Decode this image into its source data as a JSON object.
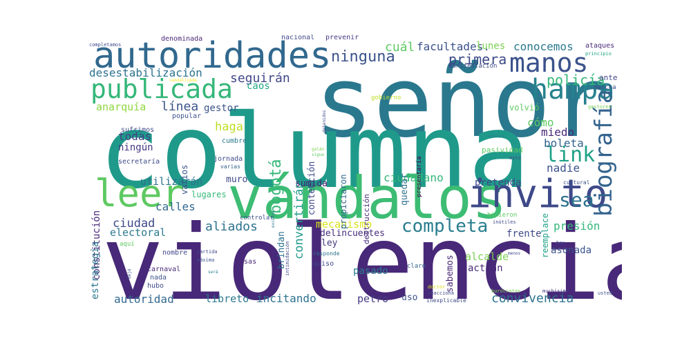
{
  "words": [
    {
      "text": "señor",
      "color": "#2a788e"
    },
    {
      "text": "columna",
      "color": "#1f9a8a"
    },
    {
      "text": "violencia",
      "color": "#482878"
    },
    {
      "text": "vándalos",
      "color": "#3dbc74"
    },
    {
      "text": "autoridades",
      "color": "#31688e"
    },
    {
      "text": "publicada",
      "color": "#35b779"
    },
    {
      "text": "leer",
      "color": "#5ec962"
    },
    {
      "text": "invito",
      "color": "#3e4989"
    },
    {
      "text": "hampa",
      "color": "#26828e"
    },
    {
      "text": "manos",
      "color": "#3b528b"
    },
    {
      "text": "completa",
      "color": "#287d8e"
    },
    {
      "text": "biografía",
      "color": "#33638d"
    },
    {
      "text": "link",
      "color": "#1fa188"
    },
    {
      "text": "ninguna",
      "color": "#3b528b"
    },
    {
      "text": "sea",
      "color": "#2c728e"
    },
    {
      "text": "policía",
      "color": "#35b779"
    },
    {
      "text": "desestabilización",
      "color": "#2c728e"
    },
    {
      "text": "seguirán",
      "color": "#404688"
    },
    {
      "text": "primera",
      "color": "#3e4989"
    },
    {
      "text": "conocemos",
      "color": "#2a788e"
    },
    {
      "text": "facultades.",
      "color": "#3b528b"
    },
    {
      "text": "cuál",
      "color": "#5ec962"
    },
    {
      "text": "lunes",
      "color": "#7ad151"
    },
    {
      "text": "anarquía",
      "color": "#90d743"
    },
    {
      "text": "línea",
      "color": "#3b528b"
    },
    {
      "text": "bogotá",
      "color": "#35b779"
    },
    {
      "text": "convertirán",
      "color": "#1f9a8a"
    },
    {
      "text": "contención",
      "color": "#3e4989"
    },
    {
      "text": "gestor",
      "color": "#3b528b"
    },
    {
      "text": "caos",
      "color": "#22a785"
    },
    {
      "text": "haga",
      "color": "#bddf26"
    },
    {
      "text": "cómo",
      "color": "#5ec962"
    },
    {
      "text": "miedo",
      "color": "#482878"
    },
    {
      "text": "boleta",
      "color": "#33638d"
    },
    {
      "text": "nadie",
      "color": "#3b528b"
    },
    {
      "text": "todas",
      "color": "#433e85"
    },
    {
      "text": "ningún",
      "color": "#453781"
    },
    {
      "text": "constitución",
      "color": "#482878"
    },
    {
      "text": "utilizarán",
      "color": "#2c728e"
    },
    {
      "text": "sumida",
      "color": "#481f70"
    },
    {
      "text": "muro",
      "color": "#404688"
    },
    {
      "text": "ciudadano",
      "color": "#35b779"
    },
    {
      "text": "pretenda",
      "color": "#3e4989"
    },
    {
      "text": "quedar",
      "color": "#2c728e"
    },
    {
      "text": "calles",
      "color": "#31688e"
    },
    {
      "text": "lugares",
      "color": "#35b779"
    },
    {
      "text": "ciudad",
      "color": "#3e4989"
    },
    {
      "text": "electoral",
      "color": "#2a788e"
    },
    {
      "text": "aliados",
      "color": "#2c728e"
    },
    {
      "text": "mecanismo",
      "color": "#d8e219"
    },
    {
      "text": "presión",
      "color": "#35b779"
    },
    {
      "text": "frente",
      "color": "#3e4989"
    },
    {
      "text": "reemplace",
      "color": "#1fa188"
    },
    {
      "text": "estrategia",
      "color": "#2a788e"
    },
    {
      "text": "delincuentes",
      "color": "#472d7b"
    },
    {
      "text": "ley",
      "color": "#453781"
    },
    {
      "text": "brindan",
      "color": "#2c728e"
    },
    {
      "text": "pasado",
      "color": "#287d8e"
    },
    {
      "text": "sabemos",
      "color": "#482878"
    },
    {
      "text": "alcalde",
      "color": "#7ad151"
    },
    {
      "text": "actúan",
      "color": "#482878"
    },
    {
      "text": "asonada",
      "color": "#3b528b"
    },
    {
      "text": "autoridad",
      "color": "#31688e"
    },
    {
      "text": "libreto",
      "color": "#2a788e"
    },
    {
      "text": "incitando",
      "color": "#2c728e"
    },
    {
      "text": "petro",
      "color": "#443983"
    },
    {
      "text": "uso",
      "color": "#3b528b"
    },
    {
      "text": "convivencia",
      "color": "#2c728e"
    },
    {
      "text": "propiciaron",
      "color": "#31688e"
    },
    {
      "text": "volvió",
      "color": "#5ec962"
    },
    {
      "text": "varios",
      "color": "#3b528b"
    },
    {
      "text": "destrucción",
      "color": "#472d7b"
    },
    {
      "text": "sufrimos",
      "color": "#3e4989"
    },
    {
      "text": "popular",
      "color": "#3b528b"
    },
    {
      "text": "cumbre",
      "color": "#2a788e"
    },
    {
      "text": "jornada",
      "color": "#3e4989"
    },
    {
      "text": "varias",
      "color": "#33638d"
    },
    {
      "text": "secretaría",
      "color": "#3e4989"
    },
    {
      "text": "pasividad",
      "color": "#5ec962"
    },
    {
      "text": "presentaría",
      "color": "#440154"
    },
    {
      "text": "gobierno",
      "color": "#bddf26"
    },
    {
      "text": "nacional",
      "color": "#3e4989"
    },
    {
      "text": "prevenir",
      "color": "#443983"
    },
    {
      "text": "denominada",
      "color": "#482878"
    },
    {
      "text": "completamos",
      "color": "#3e4989"
    },
    {
      "text": "ataques",
      "color": "#482878"
    },
    {
      "text": "principio",
      "color": "#22a785"
    },
    {
      "text": "marcha",
      "color": "#3e4989"
    },
    {
      "text": "ante",
      "color": "#404688"
    },
    {
      "text": "manifestación",
      "color": "#3e4989"
    },
    {
      "text": "gestores",
      "color": "#7ad151"
    },
    {
      "text": "semanas",
      "color": "#26828e"
    },
    {
      "text": "esto",
      "color": "#3e4989"
    },
    {
      "text": "cultural",
      "color": "#3b528b"
    },
    {
      "text": "hicieron",
      "color": "#5ec962"
    },
    {
      "text": "inútiles",
      "color": "#3e4989"
    },
    {
      "text": "hay",
      "color": "#404688"
    },
    {
      "text": "menos",
      "color": "#3e4989"
    },
    {
      "text": "muchísimo",
      "color": "#453781"
    },
    {
      "text": "usted",
      "color": "#3b528b"
    },
    {
      "text": "burócratas",
      "color": "#7ad151"
    },
    {
      "text": "reacciona",
      "color": "#3e4989"
    },
    {
      "text": "doctor",
      "color": "#d8e219"
    },
    {
      "text": "inexplicable",
      "color": "#3e4989"
    },
    {
      "text": "claro",
      "color": "#31688e"
    },
    {
      "text": "quiso",
      "color": "#404688"
    },
    {
      "text": "responde",
      "color": "#2c728e"
    },
    {
      "text": "intimidación",
      "color": "#3e4989"
    },
    {
      "text": "controlar",
      "color": "#3b528b"
    },
    {
      "text": "excesos",
      "color": "#2a788e"
    },
    {
      "text": "partida",
      "color": "#3e4989"
    },
    {
      "text": "máxima",
      "color": "#3b528b"
    },
    {
      "text": "será",
      "color": "#26828e"
    },
    {
      "text": "nombre",
      "color": "#404688"
    },
    {
      "text": "carnaval",
      "color": "#482878"
    },
    {
      "text": "nada",
      "color": "#3b528b"
    },
    {
      "text": "hubo",
      "color": "#3e4989"
    },
    {
      "text": "cosas",
      "color": "#482878"
    },
    {
      "text": "aquí",
      "color": "#5ec962"
    },
    {
      "text": "dejó",
      "color": "#3e4989"
    },
    {
      "text": "galán",
      "color": "#7ad151"
    },
    {
      "text": "sigue",
      "color": "#5ec962"
    },
    {
      "text": "detenidos",
      "color": "#3e4989"
    },
    {
      "text": "vandalizada",
      "color": "#fde725"
    }
  ]
}
